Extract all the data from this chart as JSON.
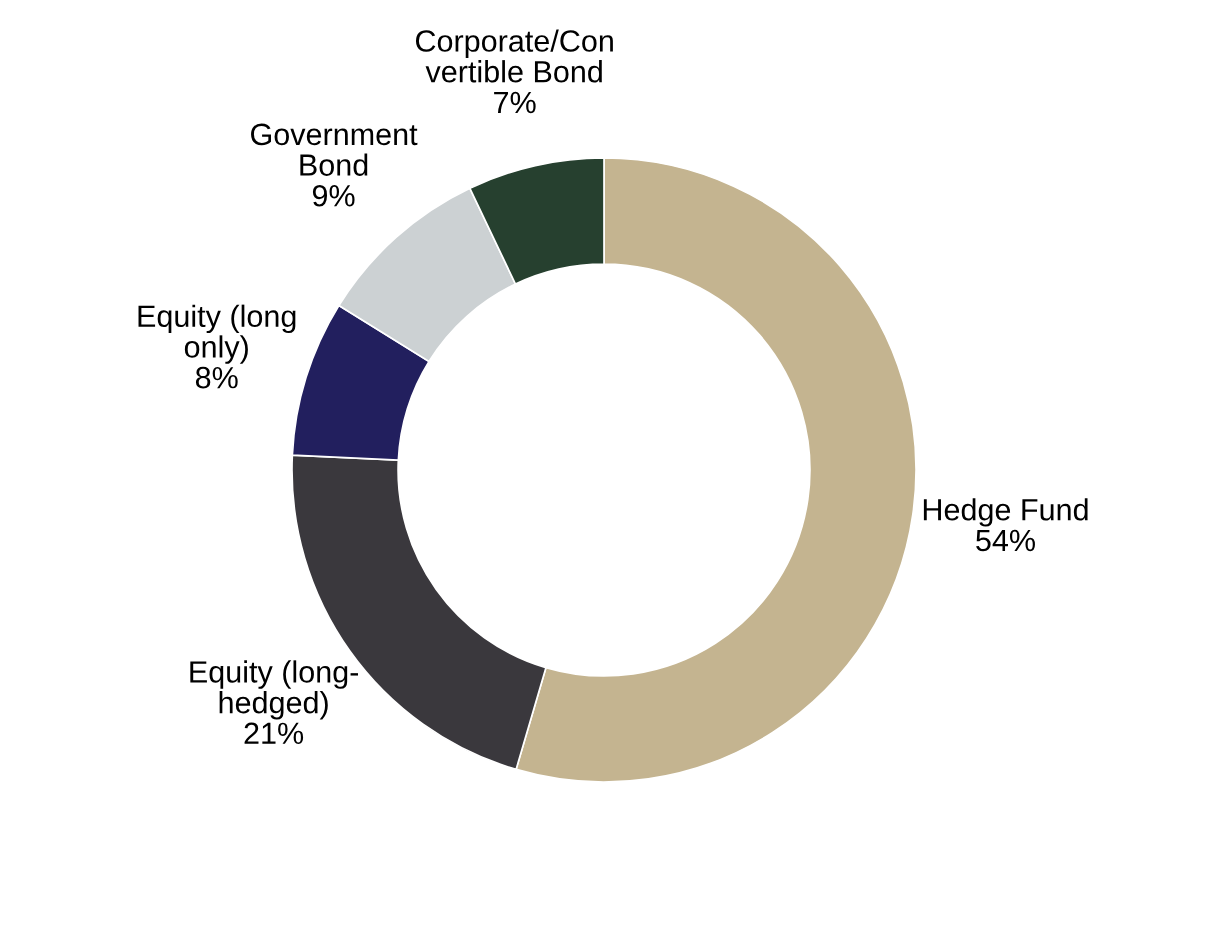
{
  "chart_data": {
    "type": "donut",
    "categories": [
      "Hedge Fund",
      "Equity (long-\nhedged)",
      "Equity (long\nonly)",
      "Government\nBond",
      "Corporate/Con\nvertible Bond"
    ],
    "values": [
      54,
      21,
      8,
      9,
      7
    ],
    "value_labels": [
      "54%",
      "21%",
      "8%",
      "9%",
      "7%"
    ],
    "colors": [
      "#c4b490",
      "#3a383d",
      "#221f5e",
      "#ccd1d3",
      "#26402f"
    ],
    "legend": false
  }
}
